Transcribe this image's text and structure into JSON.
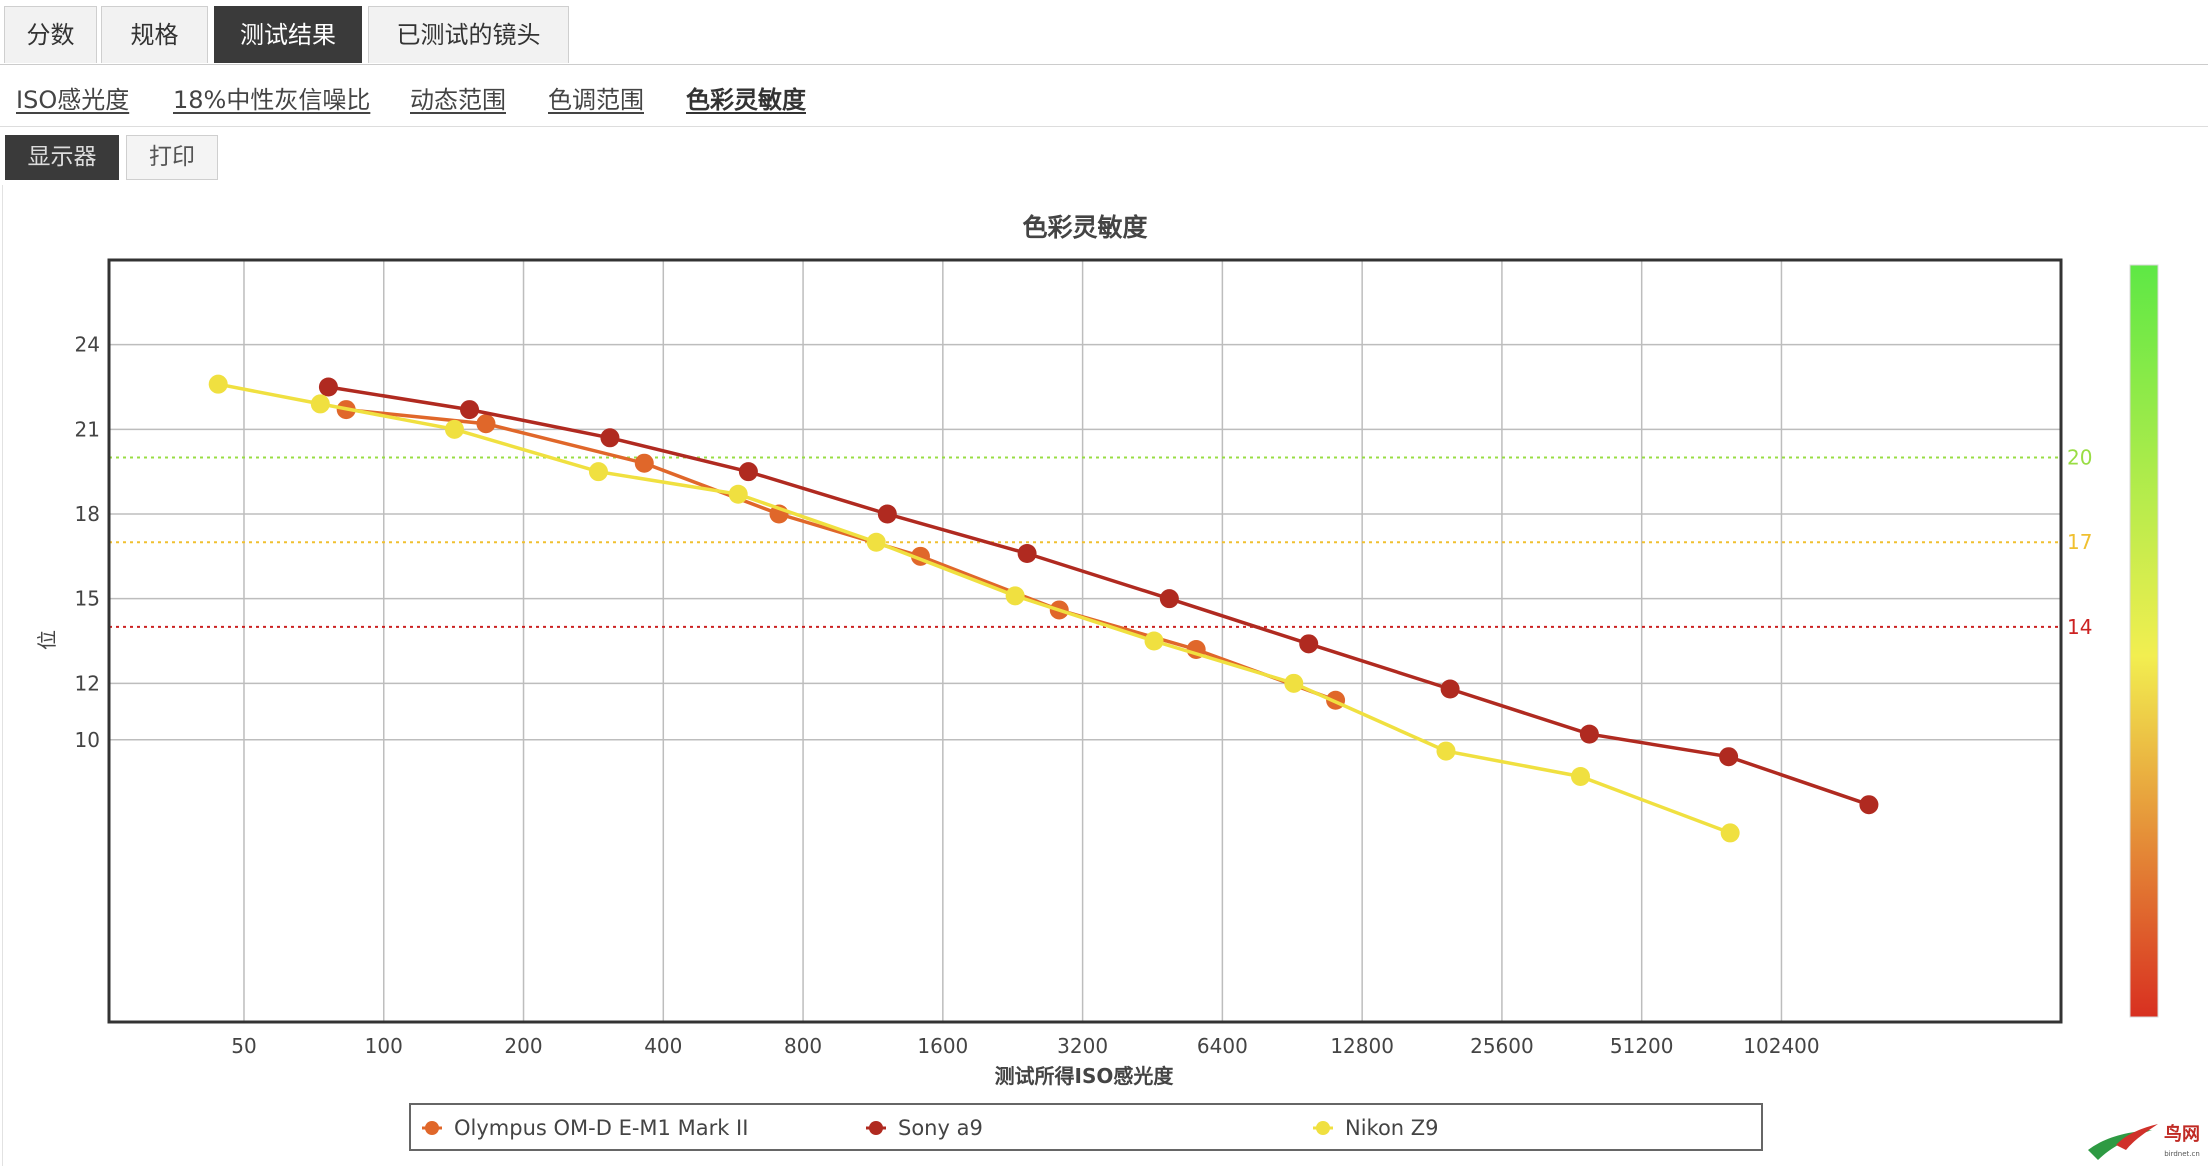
{
  "tabs": [
    {
      "label": "分数",
      "active": false
    },
    {
      "label": "规格",
      "active": false
    },
    {
      "label": "测试结果",
      "active": true
    },
    {
      "label": "已测试的镜头",
      "active": false
    }
  ],
  "subnav": [
    {
      "label": "ISO感光度",
      "active": false
    },
    {
      "label": "18%中性灰信噪比",
      "active": false
    },
    {
      "label": "动态范围",
      "active": false
    },
    {
      "label": "色调范围",
      "active": false
    },
    {
      "label": "色彩灵敏度",
      "active": true
    }
  ],
  "toggle": {
    "display_label": "显示器",
    "print_label": "打印"
  },
  "chart_data": {
    "type": "line",
    "title": "色彩灵敏度",
    "xlabel": "测试所得ISO感光度",
    "ylabel": "位",
    "x_scale": "log2",
    "x_ticks": [
      50,
      100,
      200,
      400,
      800,
      1600,
      3200,
      6400,
      12800,
      25600,
      51200,
      102400
    ],
    "x_tick_labels": [
      "50",
      "100",
      "200",
      "400",
      "800",
      "1600",
      "3200",
      "6400",
      "12800",
      "25600",
      "51200",
      "102400"
    ],
    "xlim": [
      25.6,
      409600
    ],
    "y_ticks": [
      10,
      12,
      15,
      18,
      21,
      24
    ],
    "y_tick_labels": [
      "10",
      "12",
      "15",
      "18",
      "21",
      "24"
    ],
    "ylim": [
      0,
      27
    ],
    "grid": true,
    "reference_lines": [
      {
        "value": 20,
        "label": "20",
        "color": "#99dd44"
      },
      {
        "value": 17,
        "label": "17",
        "color": "#f0c030"
      },
      {
        "value": 14,
        "label": "14",
        "color": "#cc2222"
      }
    ],
    "color_scale": {
      "top": "#5ee845",
      "mid": "#f2ee50",
      "bottom": "#d83020"
    },
    "series": [
      {
        "name": "Olympus OM-D E-M1 Mark II",
        "color": "#e0672a",
        "x": [
          83,
          166,
          364,
          710,
          1432,
          2850,
          5620,
          11220
        ],
        "y": [
          21.7,
          21.2,
          19.8,
          18.0,
          16.5,
          14.6,
          13.2,
          11.4
        ]
      },
      {
        "name": "Sony a9",
        "color": "#b02a20",
        "x": [
          76,
          153,
          307,
          610,
          1215,
          2430,
          4920,
          9820,
          19800,
          39500,
          78800,
          158000
        ],
        "y": [
          22.5,
          21.7,
          20.7,
          19.5,
          18.0,
          16.6,
          15.0,
          13.4,
          11.8,
          10.2,
          9.4,
          7.7
        ]
      },
      {
        "name": "Nikon Z9",
        "color": "#f0e040",
        "x": [
          44,
          73,
          142,
          290,
          580,
          1150,
          2290,
          4560,
          9120,
          19400,
          37800,
          79400
        ],
        "y": [
          22.6,
          21.9,
          21.0,
          19.5,
          18.7,
          17.0,
          15.1,
          13.5,
          12.0,
          9.6,
          8.7,
          6.7
        ]
      }
    ],
    "legend": [
      "Olympus OM-D E-M1 Mark II",
      "Sony a9",
      "Nikon Z9"
    ],
    "legend_position": "bottom"
  }
}
